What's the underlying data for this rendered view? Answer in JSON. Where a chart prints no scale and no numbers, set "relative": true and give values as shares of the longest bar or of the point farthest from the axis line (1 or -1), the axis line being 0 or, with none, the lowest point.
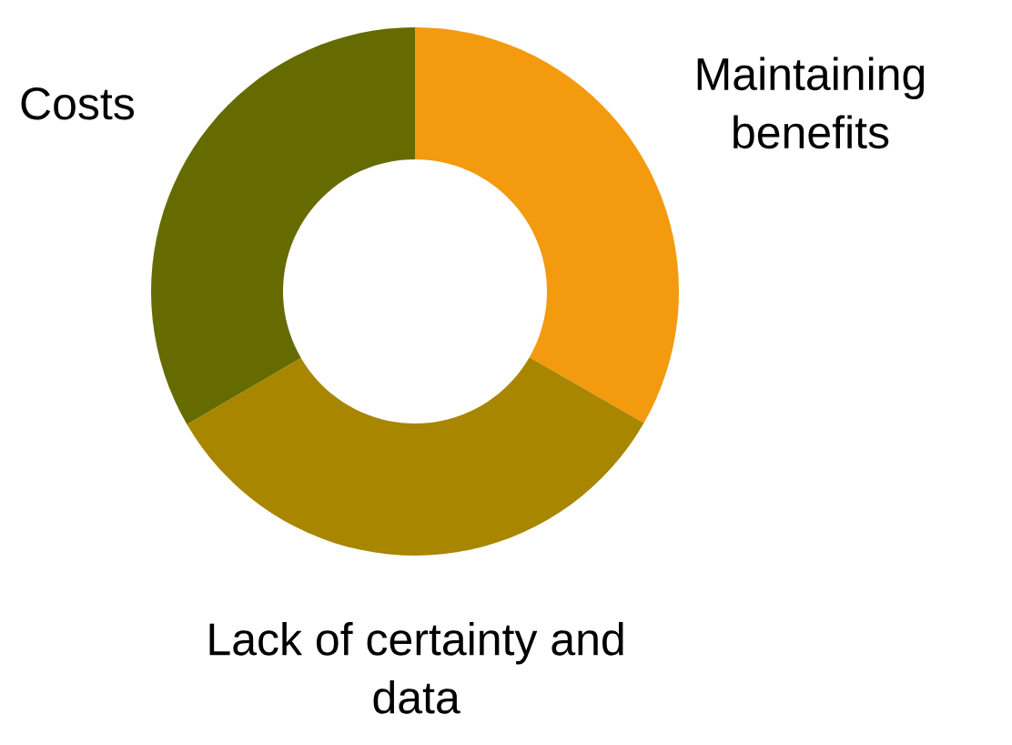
{
  "chart_data": {
    "type": "donut",
    "relative": true,
    "categories": [
      "Maintaining benefits",
      "Lack of certainty and data",
      "Costs"
    ],
    "values": [
      33.3,
      33.3,
      33.4
    ],
    "colors": [
      "#f39a0f",
      "#a98600",
      "#666b00"
    ]
  }
}
